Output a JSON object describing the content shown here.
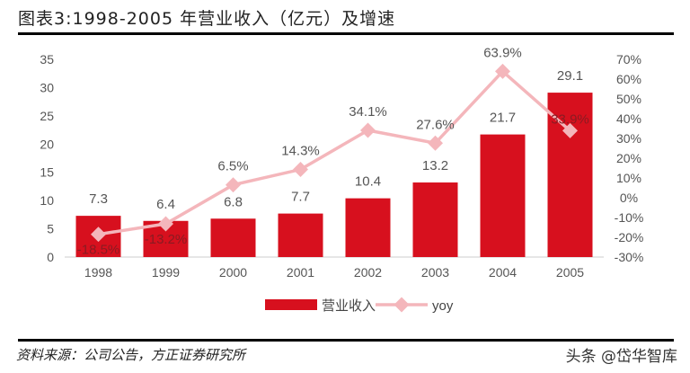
{
  "title": "图表3:1998-2005 年营业收入（亿元）及增速",
  "source": "资料来源：公司公告，方正证券研究所",
  "watermark": "头条 @岱华智库",
  "chart_data": {
    "type": "bar+line",
    "categories": [
      "1998",
      "1999",
      "2000",
      "2001",
      "2002",
      "2003",
      "2004",
      "2005"
    ],
    "series": [
      {
        "name": "营业收入",
        "type": "bar",
        "axis": "left",
        "color": "#d7101e",
        "values": [
          7.3,
          6.4,
          6.8,
          7.7,
          10.4,
          13.2,
          21.7,
          29.1
        ],
        "labels": [
          "7.3",
          "6.4",
          "6.8",
          "7.7",
          "10.4",
          "13.2",
          "21.7",
          "29.1"
        ]
      },
      {
        "name": "yoy",
        "type": "line",
        "axis": "right",
        "color": "#f4b6bb",
        "values": [
          -18.5,
          -13.2,
          6.5,
          14.3,
          34.1,
          27.6,
          63.9,
          33.9
        ],
        "labels": [
          "-18.5%",
          "-13.2%",
          "6.5%",
          "14.3%",
          "34.1%",
          "27.6%",
          "63.9%",
          "33.9%"
        ]
      }
    ],
    "ylim_left": [
      0,
      35
    ],
    "yticks_left": [
      "0",
      "5",
      "10",
      "15",
      "20",
      "25",
      "30",
      "35"
    ],
    "ylim_right": [
      -30,
      70
    ],
    "yticks_right": [
      "-30%",
      "-20%",
      "-10%",
      "0%",
      "10%",
      "20%",
      "30%",
      "40%",
      "50%",
      "60%",
      "70%"
    ],
    "legend": "bottom",
    "grid": false
  }
}
